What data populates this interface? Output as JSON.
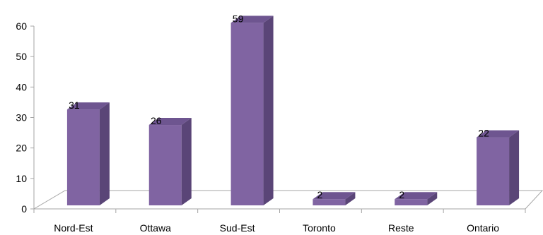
{
  "chart_data": {
    "type": "bar",
    "title": "",
    "xlabel": "",
    "ylabel": "",
    "categories": [
      "Nord-Est",
      "Ottawa",
      "Sud-Est",
      "Toronto",
      "Reste",
      "Ontario"
    ],
    "values": [
      31,
      26,
      59,
      2,
      2,
      22
    ],
    "ylim": [
      0,
      60
    ],
    "yticks": [
      0,
      10,
      20,
      30,
      40,
      50,
      60
    ],
    "data_labels": true,
    "grid": false,
    "legend": "none",
    "style": "3d-column"
  },
  "colors": {
    "bar_front": "#8064A2",
    "bar_side": "#5A4577",
    "bar_top": "#6E5590",
    "floor": "#ffffff",
    "axis": "#A6A6A6"
  }
}
